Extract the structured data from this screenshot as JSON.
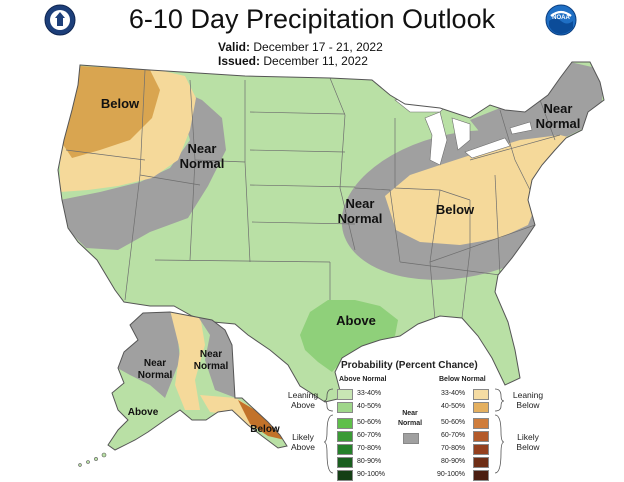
{
  "header": {
    "title": "6-10 Day Precipitation Outlook",
    "valid_label": "Valid:",
    "valid_dates": "December 17 - 21, 2022",
    "issued_label": "Issued:",
    "issued_date": "December 11, 2022",
    "left_logo": "commerce-department-seal",
    "right_logo_text": "NOAA"
  },
  "regions": {
    "below_west": "Below",
    "near_normal_west_1": "Near",
    "near_normal_west_2": "Normal",
    "near_normal_central_1": "Near",
    "near_normal_central_2": "Normal",
    "below_east": "Below",
    "near_normal_ne_1": "Near",
    "near_normal_ne_2": "Normal",
    "above_gulf": "Above",
    "ak_near_normal_w_1": "Near",
    "ak_near_normal_w_2": "Normal",
    "ak_near_normal_e_1": "Near",
    "ak_near_normal_e_2": "Normal",
    "ak_above": "Above",
    "ak_below": "Below"
  },
  "colors": {
    "leaning_above": "#b9e0a5",
    "above_40_50": "#8fd07a",
    "near_normal": "#a0a0a0",
    "leaning_below": "#f5d99a",
    "below_40_50": "#d9a550",
    "below_50_60": "#c2722a",
    "land_default": "#ffffff",
    "border": "#6e6e6e"
  },
  "legend": {
    "title": "Probability (Percent Chance)",
    "above_header": "Above Normal",
    "below_header": "Below Normal",
    "near_label_1": "Near",
    "near_label_2": "Normal",
    "leaning_above_1": "Leaning",
    "leaning_above_2": "Above",
    "likely_above_1": "Likely",
    "likely_above_2": "Above",
    "leaning_below_1": "Leaning",
    "leaning_below_2": "Below",
    "likely_below_1": "Likely",
    "likely_below_2": "Below",
    "above_bins": [
      {
        "label": "33-40%",
        "color": "#c8e6b4"
      },
      {
        "label": "40-50%",
        "color": "#9fd68a"
      },
      {
        "label": "50-60%",
        "color": "#5fbf4a"
      },
      {
        "label": "60-70%",
        "color": "#3a9a35"
      },
      {
        "label": "70-80%",
        "color": "#25802a"
      },
      {
        "label": "80-90%",
        "color": "#1a5e1f"
      },
      {
        "label": "90-100%",
        "color": "#143f15"
      }
    ],
    "below_bins": [
      {
        "label": "33-40%",
        "color": "#f5dca3"
      },
      {
        "label": "40-50%",
        "color": "#e4b060"
      },
      {
        "label": "50-60%",
        "color": "#cf7d3c"
      },
      {
        "label": "60-70%",
        "color": "#b35a2a"
      },
      {
        "label": "70-80%",
        "color": "#94401e"
      },
      {
        "label": "80-90%",
        "color": "#6e2e16"
      },
      {
        "label": "90-100%",
        "color": "#4a1d10"
      }
    ]
  }
}
